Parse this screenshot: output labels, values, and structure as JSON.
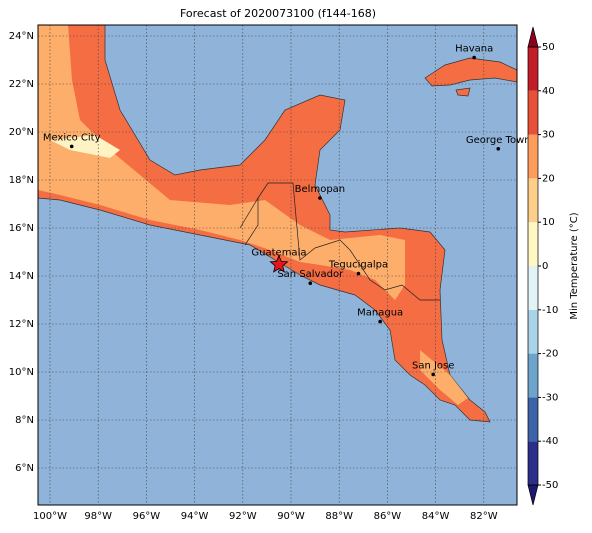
{
  "title": "Forecast of 2020073100 (f144-168)",
  "lat_labels": [
    "24°N",
    "22°N",
    "20°N",
    "18°N",
    "16°N",
    "14°N",
    "12°N",
    "10°N",
    "8°N",
    "6°N"
  ],
  "lon_labels": [
    "100°W",
    "98°W",
    "96°W",
    "94°W",
    "92°W",
    "90°W",
    "88°W",
    "86°W",
    "84°W",
    "82°W"
  ],
  "cities": [
    "Havana",
    "George Town",
    "Mexico City",
    "Belmopan",
    "Guatemala",
    "Tegucigalpa",
    "San Salvador",
    "Managua",
    "San Jose"
  ],
  "colorbar": {
    "label": "Min Temperature (°C)",
    "ticks": [
      -50,
      -40,
      -30,
      -20,
      -10,
      0,
      10,
      20,
      30,
      40,
      50
    ],
    "colors": [
      "#2b2f8a",
      "#3c63a8",
      "#6ea3cc",
      "#a9d3e6",
      "#e2f3f8",
      "#fff8c4",
      "#fdcf8a",
      "#fc9d5c",
      "#e8503a",
      "#c21e27"
    ],
    "under_color": "#1a1a6e",
    "over_color": "#8e0022"
  }
}
